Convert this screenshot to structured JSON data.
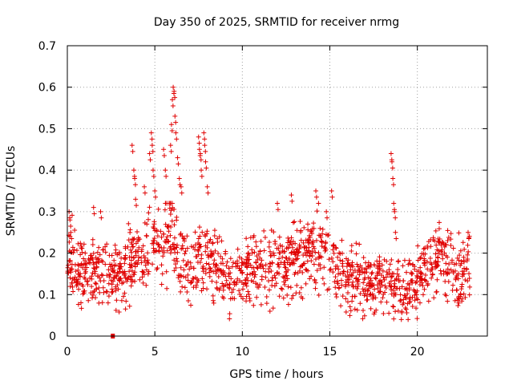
{
  "chart_data": {
    "type": "scatter",
    "title": "Day 350 of 2025, SRMTID for receiver nrmg",
    "xlabel": "GPS time / hours",
    "ylabel": "SRMTID / TECUs",
    "xlim": [
      0,
      24
    ],
    "ylim": [
      0,
      0.7
    ],
    "xticks": [
      0,
      5,
      10,
      15,
      20
    ],
    "yticks": [
      0,
      0.1,
      0.2,
      0.3,
      0.4,
      0.5,
      0.6,
      0.7
    ],
    "xtick_labels": [
      "0",
      "5",
      "10",
      "15",
      "20"
    ],
    "ytick_labels": [
      "0",
      "0.1",
      "0.2",
      "0.3",
      "0.4",
      "0.5",
      "0.6",
      "0.7"
    ],
    "grid": true,
    "marker": "plus",
    "color": "#e00000",
    "trend": [
      [
        0.0,
        0.2
      ],
      [
        0.5,
        0.15
      ],
      [
        1.0,
        0.16
      ],
      [
        1.5,
        0.17
      ],
      [
        2.0,
        0.15
      ],
      [
        2.5,
        0.14
      ],
      [
        3.0,
        0.15
      ],
      [
        3.5,
        0.17
      ],
      [
        4.0,
        0.18
      ],
      [
        4.5,
        0.19
      ],
      [
        5.0,
        0.23
      ],
      [
        5.5,
        0.24
      ],
      [
        6.0,
        0.25
      ],
      [
        6.5,
        0.18
      ],
      [
        7.0,
        0.16
      ],
      [
        7.5,
        0.2
      ],
      [
        8.0,
        0.19
      ],
      [
        8.5,
        0.16
      ],
      [
        9.0,
        0.14
      ],
      [
        9.5,
        0.12
      ],
      [
        10.0,
        0.15
      ],
      [
        10.5,
        0.16
      ],
      [
        11.0,
        0.16
      ],
      [
        11.5,
        0.17
      ],
      [
        12.0,
        0.17
      ],
      [
        12.5,
        0.17
      ],
      [
        13.0,
        0.19
      ],
      [
        13.5,
        0.18
      ],
      [
        14.0,
        0.22
      ],
      [
        14.5,
        0.2
      ],
      [
        15.0,
        0.18
      ],
      [
        15.5,
        0.15
      ],
      [
        16.0,
        0.14
      ],
      [
        16.5,
        0.14
      ],
      [
        17.0,
        0.12
      ],
      [
        17.5,
        0.13
      ],
      [
        18.0,
        0.13
      ],
      [
        18.5,
        0.12
      ],
      [
        19.0,
        0.12
      ],
      [
        19.5,
        0.12
      ],
      [
        20.0,
        0.13
      ],
      [
        20.5,
        0.16
      ],
      [
        21.0,
        0.19
      ],
      [
        21.5,
        0.19
      ],
      [
        22.0,
        0.16
      ],
      [
        22.5,
        0.15
      ],
      [
        23.0,
        0.17
      ]
    ],
    "highlights": [
      [
        0.1,
        0.3
      ],
      [
        0.15,
        0.28
      ],
      [
        0.2,
        0.25
      ],
      [
        3.7,
        0.46
      ],
      [
        3.8,
        0.4
      ],
      [
        3.85,
        0.38
      ],
      [
        3.9,
        0.33
      ],
      [
        4.4,
        0.36
      ],
      [
        4.7,
        0.44
      ],
      [
        4.8,
        0.49
      ],
      [
        4.85,
        0.46
      ],
      [
        4.9,
        0.4
      ],
      [
        5.0,
        0.35
      ],
      [
        5.5,
        0.45
      ],
      [
        5.6,
        0.4
      ],
      [
        5.9,
        0.46
      ],
      [
        5.95,
        0.51
      ],
      [
        6.0,
        0.57
      ],
      [
        6.05,
        0.6
      ],
      [
        6.1,
        0.59
      ],
      [
        6.15,
        0.53
      ],
      [
        6.2,
        0.49
      ],
      [
        6.3,
        0.43
      ],
      [
        6.4,
        0.38
      ],
      [
        6.5,
        0.36
      ],
      [
        7.5,
        0.48
      ],
      [
        7.55,
        0.45
      ],
      [
        7.6,
        0.44
      ],
      [
        7.65,
        0.4
      ],
      [
        7.8,
        0.49
      ],
      [
        7.85,
        0.46
      ],
      [
        7.9,
        0.42
      ],
      [
        8.0,
        0.36
      ],
      [
        12.0,
        0.32
      ],
      [
        12.8,
        0.34
      ],
      [
        14.2,
        0.35
      ],
      [
        14.8,
        0.3
      ],
      [
        15.1,
        0.35
      ],
      [
        18.5,
        0.44
      ],
      [
        18.55,
        0.42
      ],
      [
        18.6,
        0.38
      ],
      [
        18.65,
        0.32
      ],
      [
        18.7,
        0.3
      ],
      [
        18.75,
        0.25
      ],
      [
        1.5,
        0.31
      ],
      [
        1.9,
        0.3
      ],
      [
        22.9,
        0.25
      ]
    ],
    "outlier": [
      2.6,
      0.0
    ]
  }
}
